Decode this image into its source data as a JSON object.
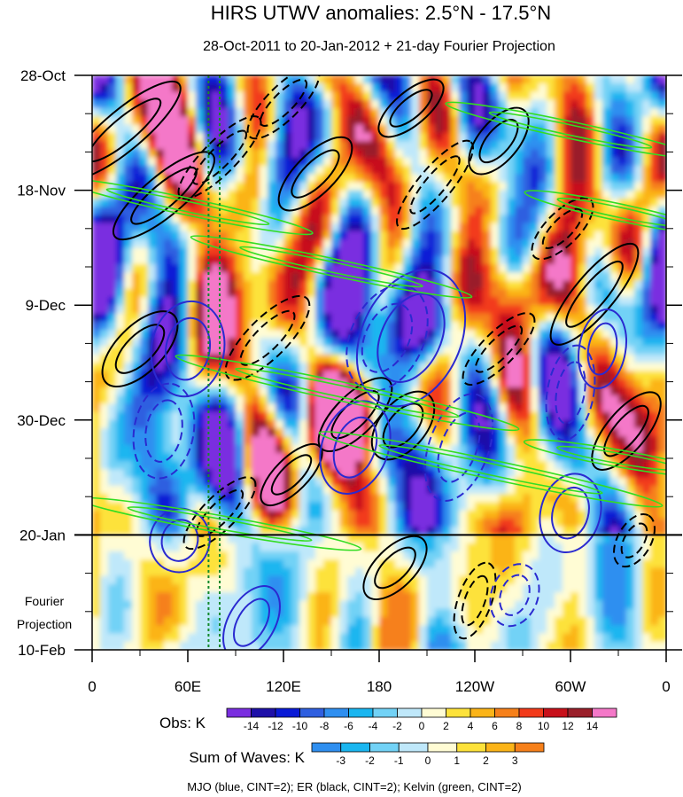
{
  "chart_data": {
    "type": "heatmap",
    "title": "HIRS UTWV anomalies: 2.5°N - 17.5°N",
    "subtitle": "28-Oct-2011 to 20-Jan-2012 + 21-day Fourier Projection",
    "xlabel": "",
    "ylabel": "",
    "x_tick_labels": [
      "0",
      "60E",
      "120E",
      "180",
      "120W",
      "60W",
      "0"
    ],
    "x_tick_longitudes": [
      0,
      60,
      120,
      180,
      240,
      300,
      360
    ],
    "y_tick_labels": [
      "28-Oct",
      "18-Nov",
      "9-Dec",
      "30-Dec",
      "20-Jan",
      "10-Feb"
    ],
    "y_tick_days": [
      0,
      21,
      42,
      63,
      84,
      105
    ],
    "x_range": [
      0,
      360
    ],
    "y_range_days": [
      0,
      105
    ],
    "projection_start_day": 84,
    "projection_label": "Fourier Projection",
    "reference_longitudes": [
      73,
      80
    ],
    "obs_legend": {
      "label": "Obs: K",
      "levels": [
        -14,
        -12,
        -10,
        -8,
        -6,
        -4,
        -2,
        0,
        2,
        4,
        6,
        8,
        10,
        12,
        14
      ],
      "colors": [
        "#7a2ee0",
        "#1e10a8",
        "#0a1ad6",
        "#2f5fe0",
        "#2f8ff0",
        "#1ab6f0",
        "#72d2f6",
        "#bfe8fa",
        "#fffcd4",
        "#fde23a",
        "#fbb418",
        "#f6801a",
        "#f23a1a",
        "#c8101a",
        "#9a1f2a",
        "#f478c8"
      ]
    },
    "waves_legend": {
      "label": "Sum of Waves: K",
      "levels": [
        -3,
        -2,
        -1,
        0,
        1,
        2,
        3
      ],
      "colors": [
        "#2f8ff0",
        "#1ab6f0",
        "#72d2f6",
        "#bfe8fa",
        "#fffcd4",
        "#fde23a",
        "#fbb418",
        "#f6801a"
      ]
    },
    "contour_note": "MJO (blue, CINT=2); ER (black, CINT=2); Kelvin (green, CINT=2)",
    "series": [
      {
        "name": "MJO",
        "color": "#2a2ad0",
        "cint": 2
      },
      {
        "name": "ER",
        "color": "#000000",
        "cint": 2
      },
      {
        "name": "Kelvin",
        "color": "#33dd22",
        "cint": 2
      }
    ],
    "contour_features": [
      {
        "series": "ER",
        "sign": "pos",
        "lon": 20,
        "day": 10,
        "a": 45,
        "b": 5,
        "angle": -40
      },
      {
        "series": "ER",
        "sign": "pos",
        "lon": 45,
        "day": 22,
        "a": 40,
        "b": 5,
        "angle": -40
      },
      {
        "series": "ER",
        "sign": "neg",
        "lon": 80,
        "day": 15,
        "a": 35,
        "b": 4,
        "angle": -45
      },
      {
        "series": "ER",
        "sign": "neg",
        "lon": 120,
        "day": 5,
        "a": 30,
        "b": 4,
        "angle": -45
      },
      {
        "series": "ER",
        "sign": "pos",
        "lon": 140,
        "day": 18,
        "a": 30,
        "b": 5,
        "angle": -45
      },
      {
        "series": "ER",
        "sign": "pos",
        "lon": 200,
        "day": 6,
        "a": 25,
        "b": 4,
        "angle": -40
      },
      {
        "series": "ER",
        "sign": "neg",
        "lon": 215,
        "day": 20,
        "a": 35,
        "b": 4,
        "angle": -50
      },
      {
        "series": "ER",
        "sign": "pos",
        "lon": 255,
        "day": 12,
        "a": 25,
        "b": 5,
        "angle": -50
      },
      {
        "series": "ER",
        "sign": "neg",
        "lon": 295,
        "day": 28,
        "a": 25,
        "b": 4,
        "angle": -45
      },
      {
        "series": "ER",
        "sign": "pos",
        "lon": 315,
        "day": 40,
        "a": 40,
        "b": 5,
        "angle": -50
      },
      {
        "series": "ER",
        "sign": "pos",
        "lon": 30,
        "day": 50,
        "a": 30,
        "b": 6,
        "angle": -45
      },
      {
        "series": "ER",
        "sign": "neg",
        "lon": 110,
        "day": 48,
        "a": 35,
        "b": 5,
        "angle": -45
      },
      {
        "series": "ER",
        "sign": "pos",
        "lon": 165,
        "day": 62,
        "a": 30,
        "b": 5,
        "angle": -45
      },
      {
        "series": "ER",
        "sign": "pos",
        "lon": 195,
        "day": 64,
        "a": 25,
        "b": 6,
        "angle": -50
      },
      {
        "series": "ER",
        "sign": "neg",
        "lon": 255,
        "day": 50,
        "a": 30,
        "b": 4,
        "angle": -45
      },
      {
        "series": "ER",
        "sign": "pos",
        "lon": 335,
        "day": 65,
        "a": 30,
        "b": 5,
        "angle": -50
      },
      {
        "series": "ER",
        "sign": "neg",
        "lon": 80,
        "day": 80,
        "a": 30,
        "b": 4,
        "angle": -45
      },
      {
        "series": "ER",
        "sign": "pos",
        "lon": 125,
        "day": 73,
        "a": 25,
        "b": 4,
        "angle": -45
      },
      {
        "series": "ER",
        "sign": "pos",
        "lon": 190,
        "day": 90,
        "a": 25,
        "b": 5,
        "angle": -45
      },
      {
        "series": "ER",
        "sign": "neg",
        "lon": 240,
        "day": 96,
        "a": 25,
        "b": 4,
        "angle": -70
      },
      {
        "series": "ER",
        "sign": "neg",
        "lon": 340,
        "day": 85,
        "a": 18,
        "b": 4,
        "angle": -60
      },
      {
        "series": "MJO",
        "sign": "pos",
        "lon": 60,
        "day": 50,
        "a": 30,
        "b": 10,
        "angle": -80
      },
      {
        "series": "MJO",
        "sign": "neg",
        "lon": 45,
        "day": 65,
        "a": 30,
        "b": 8,
        "angle": -80
      },
      {
        "series": "MJO",
        "sign": "pos",
        "lon": 55,
        "day": 85,
        "a": 20,
        "b": 8,
        "angle": -75
      },
      {
        "series": "MJO",
        "sign": "neg",
        "lon": 185,
        "day": 48,
        "a": 35,
        "b": 10,
        "angle": -65
      },
      {
        "series": "MJO",
        "sign": "pos",
        "lon": 200,
        "day": 48,
        "a": 45,
        "b": 14,
        "angle": -65
      },
      {
        "series": "MJO",
        "sign": "pos",
        "lon": 165,
        "day": 68,
        "a": 30,
        "b": 9,
        "angle": -70
      },
      {
        "series": "MJO",
        "sign": "neg",
        "lon": 230,
        "day": 68,
        "a": 35,
        "b": 8,
        "angle": -70
      },
      {
        "series": "MJO",
        "sign": "pos",
        "lon": 320,
        "day": 50,
        "a": 25,
        "b": 6,
        "angle": -80
      },
      {
        "series": "MJO",
        "sign": "neg",
        "lon": 300,
        "day": 58,
        "a": 30,
        "b": 6,
        "angle": -80
      },
      {
        "series": "MJO",
        "sign": "pos",
        "lon": 300,
        "day": 80,
        "a": 25,
        "b": 8,
        "angle": -75
      },
      {
        "series": "MJO",
        "sign": "neg",
        "lon": 265,
        "day": 95,
        "a": 20,
        "b": 6,
        "angle": -70
      },
      {
        "series": "MJO",
        "sign": "pos",
        "lon": 100,
        "day": 100,
        "a": 25,
        "b": 6,
        "angle": -60
      },
      {
        "series": "Kelvin",
        "lon": 60,
        "day": 24,
        "a": 80,
        "b": 1.5,
        "angle": 12
      },
      {
        "series": "Kelvin",
        "lon": 150,
        "day": 35,
        "a": 90,
        "b": 1.5,
        "angle": 12
      },
      {
        "series": "Kelvin",
        "lon": 300,
        "day": 10,
        "a": 80,
        "b": 1.5,
        "angle": 12
      },
      {
        "series": "Kelvin",
        "lon": 330,
        "day": 25,
        "a": 60,
        "b": 1.5,
        "angle": 12
      },
      {
        "series": "Kelvin",
        "lon": 160,
        "day": 58,
        "a": 110,
        "b": 1.8,
        "angle": 12
      },
      {
        "series": "Kelvin",
        "lon": 250,
        "day": 72,
        "a": 110,
        "b": 1.8,
        "angle": 12
      },
      {
        "series": "Kelvin",
        "lon": 80,
        "day": 82,
        "a": 90,
        "b": 1.5,
        "angle": 10
      },
      {
        "series": "Kelvin",
        "lon": 330,
        "day": 70,
        "a": 60,
        "b": 1.5,
        "angle": 10
      }
    ]
  }
}
